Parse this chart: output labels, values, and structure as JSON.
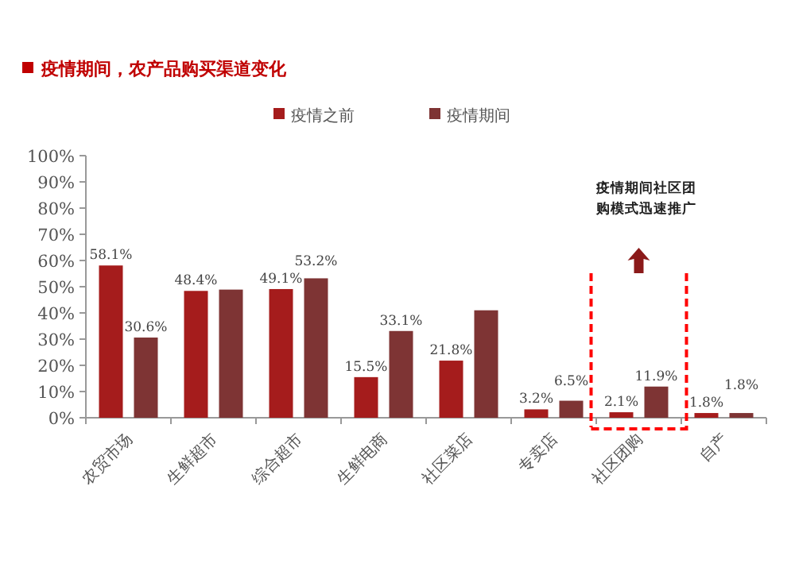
{
  "chart_data": {
    "type": "bar",
    "title": "疫情期间，农产品购买渠道变化",
    "categories": [
      "农贸市场",
      "生鲜超市",
      "综合超市",
      "生鲜电商",
      "社区菜店",
      "专卖店",
      "社区团购",
      "自产"
    ],
    "series": [
      {
        "name": "疫情之前",
        "color": "#a51c1c",
        "values": [
          58.1,
          48.4,
          49.1,
          15.5,
          21.8,
          3.2,
          2.1,
          1.8
        ],
        "value_labels": [
          "58.1%",
          "48.4%",
          "49.1%",
          "15.5%",
          "21.8%",
          "3.2%",
          "2.1%",
          "1.8%"
        ]
      },
      {
        "name": "疫情期间",
        "color": "#7e3434",
        "values": [
          30.6,
          48.9,
          53.2,
          33.1,
          41,
          6.5,
          11.9,
          1.8
        ],
        "value_labels": [
          "30.6%",
          null,
          "53.2%",
          "33.1%",
          null,
          "6.5%",
          "11.9%",
          "1.8%"
        ]
      }
    ],
    "ylim": [
      0,
      100
    ],
    "yticks": [
      {
        "value": 0,
        "label": "0%"
      },
      {
        "value": 10,
        "label": "10%"
      },
      {
        "value": 20,
        "label": "20%"
      },
      {
        "value": 30,
        "label": "30%"
      },
      {
        "value": 40,
        "label": "40%"
      },
      {
        "value": 50,
        "label": "50%"
      },
      {
        "value": 60,
        "label": "60%"
      },
      {
        "value": 70,
        "label": "70%"
      },
      {
        "value": 80,
        "label": "80%"
      },
      {
        "value": 90,
        "label": "90%"
      },
      {
        "value": 100,
        "label": "100%"
      }
    ],
    "legend": "top",
    "annotations": [
      "疫情期间社区团购模式迅速推广"
    ]
  }
}
